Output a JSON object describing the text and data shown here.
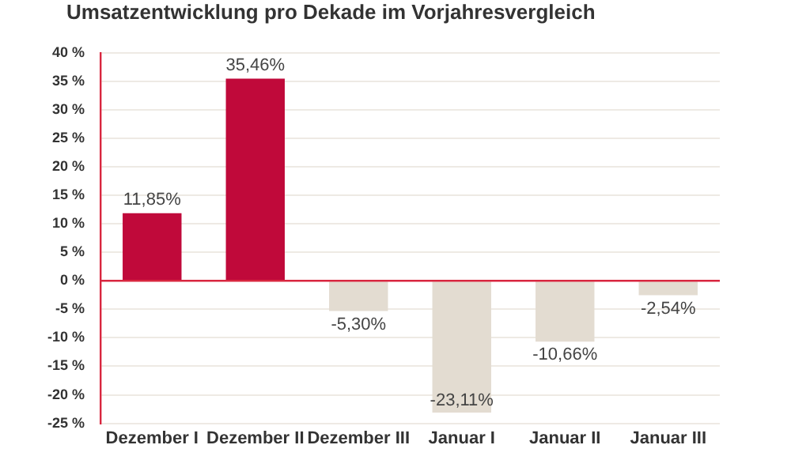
{
  "chart_data": {
    "type": "bar",
    "title": "Umsatzentwicklung pro Dekade im Vorjahresvergleich",
    "categories": [
      "Dezember I",
      "Dezember II",
      "Dezember III",
      "Januar I",
      "Januar II",
      "Januar III"
    ],
    "values": [
      11.85,
      35.46,
      -5.3,
      -23.11,
      -10.66,
      -2.54
    ],
    "colors": [
      "#c0093a",
      "#c0093a",
      "#e3dcd1",
      "#e3dcd1",
      "#e3dcd1",
      "#e3dcd1"
    ],
    "value_labels": [
      "11,85%",
      "35,46%",
      "-5,30%",
      "-23,11%",
      "-10,66%",
      "-2,54%"
    ],
    "ylim": [
      -25,
      40
    ],
    "yticks": [
      {
        "value": -25,
        "label": "-25 %"
      },
      {
        "value": -20,
        "label": "-20 %"
      },
      {
        "value": -15,
        "label": "-15 %"
      },
      {
        "value": -10,
        "label": "-10 %"
      },
      {
        "value": -5,
        "label": "-5 %"
      },
      {
        "value": 0,
        "label": "0 %"
      },
      {
        "value": 5,
        "label": "5 %"
      },
      {
        "value": 10,
        "label": "10 %"
      },
      {
        "value": 15,
        "label": "15 %"
      },
      {
        "value": 20,
        "label": "20 %"
      },
      {
        "value": 25,
        "label": "25 %"
      },
      {
        "value": 30,
        "label": "30 %"
      },
      {
        "value": 35,
        "label": "35 %"
      },
      {
        "value": 40,
        "label": "40 %"
      }
    ],
    "ref_lines": [
      {
        "axis": "y",
        "value": 0,
        "color": "#d8263f"
      }
    ],
    "grid": "y",
    "legend": false
  }
}
